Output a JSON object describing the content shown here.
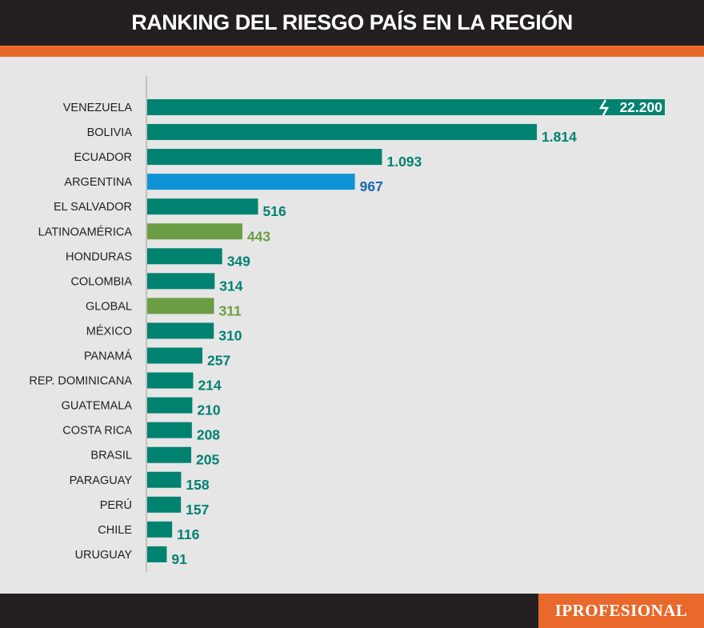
{
  "title": "RANKING DEL RIESGO PAÍS EN LA REGIÓN",
  "logo": "IPROFESIONAL",
  "colors": {
    "default": "#008270",
    "argentina": "#0f93d6",
    "argentina_label": "#1a67b0",
    "aggregate": "#6b9d44",
    "header_bg": "#231f20",
    "accent": "#e8692b",
    "background": "#e6e6e6"
  },
  "chart_data": {
    "type": "bar",
    "orientation": "horizontal",
    "axis_break_on": "VENEZUELA",
    "categories": [
      "VENEZUELA",
      "BOLIVIA",
      "ECUADOR",
      "ARGENTINA",
      "EL SALVADOR",
      "LATINOAMÉRICA",
      "HONDURAS",
      "COLOMBIA",
      "GLOBAL",
      "MÉXICO",
      "PANAMÁ",
      "REP. DOMINICANA",
      "GUATEMALA",
      "COSTA RICA",
      "BRASIL",
      "PARAGUAY",
      "PERÚ",
      "CHILE",
      "URUGUAY"
    ],
    "values": [
      22200,
      1814,
      1093,
      967,
      516,
      443,
      349,
      314,
      311,
      310,
      257,
      214,
      210,
      208,
      205,
      158,
      157,
      116,
      91
    ],
    "value_labels": [
      "22.200",
      "1.814",
      "1.093",
      "967",
      "516",
      "443",
      "349",
      "314",
      "311",
      "310",
      "257",
      "214",
      "210",
      "208",
      "205",
      "158",
      "157",
      "116",
      "91"
    ],
    "bar_colors": [
      "default",
      "default",
      "default",
      "argentina",
      "default",
      "aggregate",
      "default",
      "default",
      "aggregate",
      "default",
      "default",
      "default",
      "default",
      "default",
      "default",
      "default",
      "default",
      "default",
      "default"
    ]
  }
}
